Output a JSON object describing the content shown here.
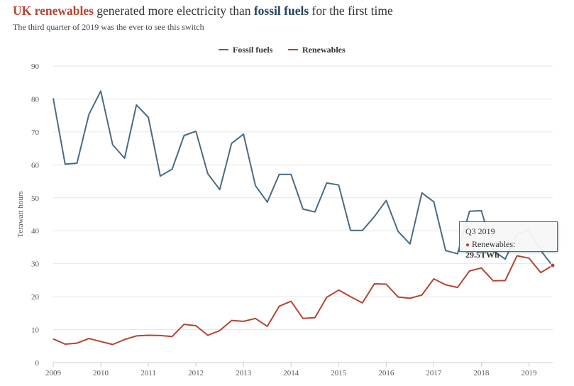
{
  "header": {
    "title_part1": "UK renewables",
    "title_part2": " generated more electricity than ",
    "title_part3": "fossil fuels",
    "title_part4": " for the first time",
    "subtitle": "The third quarter of 2019 was the ever to see this switch"
  },
  "colors": {
    "fossil": "#4a6b85",
    "renewables": "#b34432",
    "grid": "#e6e6e6"
  },
  "chart_data": {
    "type": "line",
    "title": "UK renewables generated more electricity than fossil fuels for the first time",
    "subtitle": "The third quarter of 2019 was the ever to see this switch",
    "xlabel": "",
    "ylabel": "Terawatt hours",
    "xlim": [
      2009,
      2019.5
    ],
    "ylim": [
      0,
      90
    ],
    "y_ticks": [
      0,
      10,
      20,
      30,
      40,
      50,
      60,
      70,
      80,
      90
    ],
    "x_ticks": [
      "2009",
      "2010",
      "2011",
      "2012",
      "2013",
      "2014",
      "2015",
      "2016",
      "2017",
      "2018",
      "2019"
    ],
    "legend": "top-center",
    "grid": true,
    "series": [
      {
        "name": "Fossil fuels",
        "color": "#4a6b85",
        "values": [
          80.2,
          60.2,
          60.5,
          75.3,
          82.4,
          66.1,
          62.0,
          78.2,
          74.4,
          56.6,
          58.7,
          68.9,
          70.2,
          57.3,
          52.5,
          66.5,
          69.3,
          53.7,
          48.7,
          57.1,
          57.1,
          46.6,
          45.7,
          54.5,
          53.9,
          40.1,
          40.1,
          44.3,
          49.2,
          39.8,
          36.0,
          51.5,
          48.8,
          34.0,
          33.0,
          45.9,
          46.1,
          34.0,
          31.4,
          39.0,
          40.2,
          34.0,
          29.3
        ]
      },
      {
        "name": "Renewables",
        "color": "#b34432",
        "values": [
          7.2,
          5.6,
          5.9,
          7.3,
          6.4,
          5.5,
          7.0,
          8.1,
          8.3,
          8.2,
          7.9,
          11.6,
          11.2,
          8.3,
          9.7,
          12.8,
          12.5,
          13.4,
          11.0,
          17.1,
          18.6,
          13.4,
          13.6,
          19.8,
          22.0,
          20.0,
          18.1,
          23.9,
          23.8,
          19.9,
          19.5,
          20.5,
          25.4,
          23.6,
          22.8,
          27.8,
          28.7,
          24.8,
          24.9,
          32.4,
          31.7,
          27.3,
          29.5
        ]
      }
    ],
    "tooltip": {
      "title": "Q3 2019",
      "series": "Renewables",
      "label": "Renewables: ",
      "value": "29.5TWh"
    }
  }
}
